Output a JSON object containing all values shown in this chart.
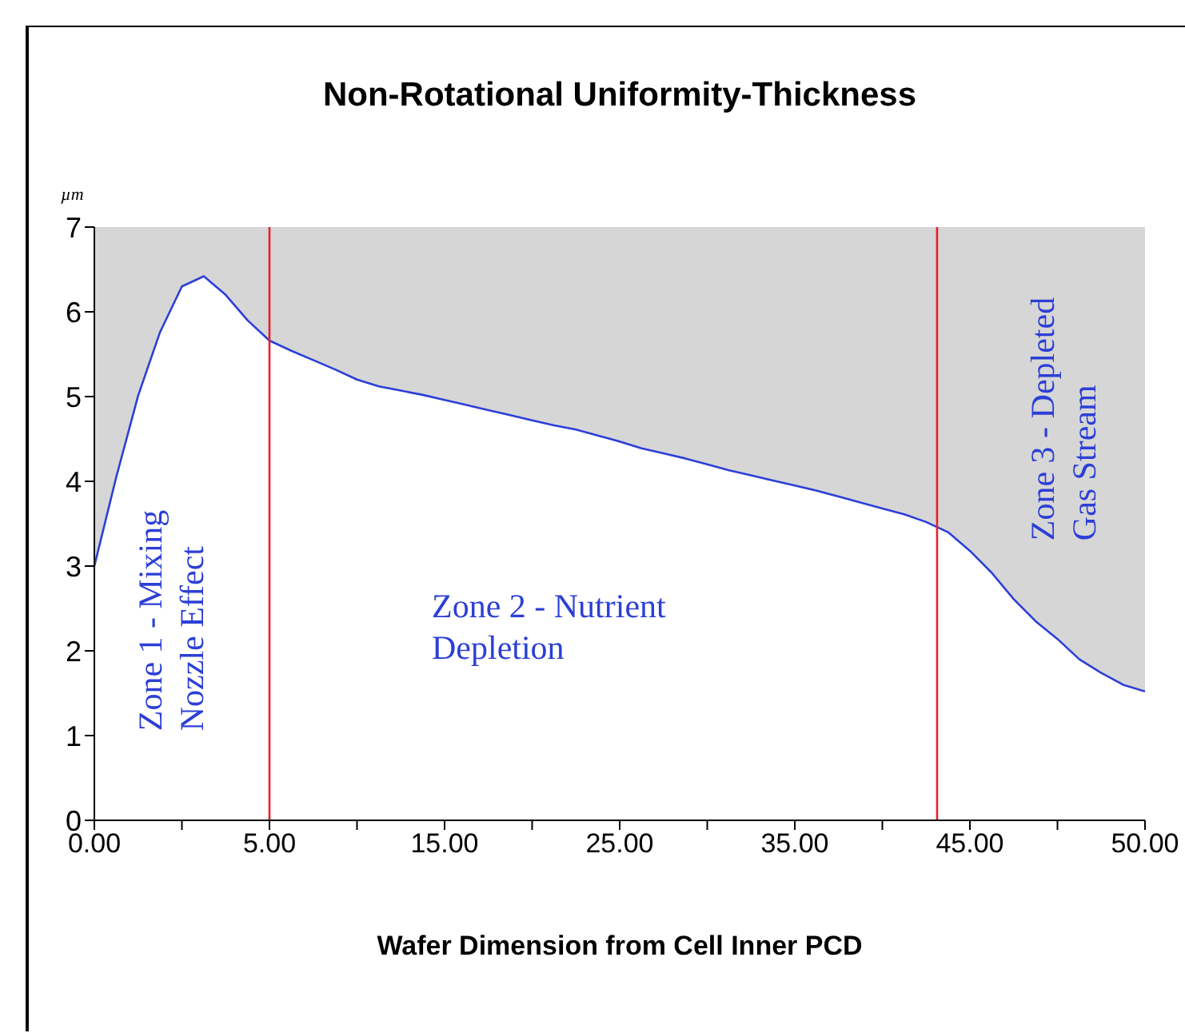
{
  "chart_data": {
    "type": "area",
    "title": "Non-Rotational Uniformity-Thickness",
    "xlabel": "Wafer Dimension from Cell Inner PCD",
    "ylabel": "µm",
    "categories": [
      "0.00",
      null,
      null,
      null,
      null,
      null,
      null,
      null,
      "5.00",
      null,
      null,
      null,
      null,
      null,
      null,
      null,
      "15.00",
      null,
      null,
      null,
      null,
      null,
      null,
      null,
      "25.00",
      null,
      null,
      null,
      null,
      null,
      null,
      null,
      "35.00",
      null,
      null,
      null,
      null,
      null,
      null,
      null,
      "45.00",
      null,
      null,
      null,
      null,
      null,
      null,
      null,
      "50.00"
    ],
    "series": [
      {
        "color": "#2c3fd6",
        "values": [
          3.0,
          4.05,
          5.01,
          5.76,
          6.3,
          6.42,
          6.2,
          5.9,
          5.66,
          5.54,
          5.43,
          5.32,
          5.2,
          5.12,
          5.07,
          5.02,
          4.96,
          4.9,
          4.84,
          4.78,
          4.72,
          4.66,
          4.61,
          4.54,
          4.47,
          4.39,
          4.33,
          4.27,
          4.2,
          4.13,
          4.07,
          4.01,
          3.95,
          3.89,
          3.82,
          3.75,
          3.68,
          3.61,
          3.52,
          3.4,
          3.18,
          2.92,
          2.61,
          2.35,
          2.14,
          1.9,
          1.74,
          1.6,
          1.52
        ]
      }
    ],
    "ylim": [
      0,
      7
    ],
    "yticks": [
      0,
      1,
      2,
      3,
      4,
      5,
      6,
      7
    ],
    "ref_lines": [
      {
        "axis": "x",
        "value": "5.00",
        "color": "#e8202a"
      }
    ],
    "annotations": [
      "Zone 1 - Mixing\nNozzle Effect",
      "Zone 2 - Nutrient\nDepletion",
      "Zone 3 - Depleted\nGas Stream"
    ],
    "grid": false,
    "legend": false
  }
}
